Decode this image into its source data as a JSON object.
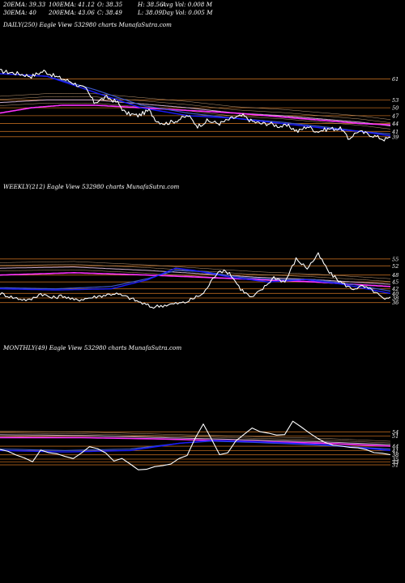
{
  "header": {
    "row1": [
      "20EMA: 39.33",
      "100EMA: 41.12",
      "O: 38.35",
      "H: 38.56",
      "Avg Vol: 0.008 M"
    ],
    "row2": [
      "30EMA: 40",
      "200EMA: 43.06",
      "C: 38.49",
      "L: 38.09",
      "Day Vol: 0.005 M"
    ]
  },
  "colors": {
    "background": "#000000",
    "price": "#ffffff",
    "ema20": "#1a1aff",
    "ema30": "#3a55c8",
    "ema100": "#ff33ff",
    "ema200": "#d0b0d0",
    "level": "#b5651d",
    "minor_ema": "#c8a078"
  },
  "chart_data": [
    {
      "type": "line",
      "title": "DAILY(250) Eagle  View  532980  charts MunafaSutra.com",
      "ylim": [
        34,
        67
      ],
      "levels": [
        61,
        53,
        50,
        47,
        44,
        41,
        39
      ],
      "tick_labels": [
        "61",
        "53",
        "50",
        "47",
        "44",
        "41",
        "39"
      ],
      "x_count": 250,
      "series": [
        {
          "role": "price",
          "anchors": [
            [
              0,
              64
            ],
            [
              12,
              63
            ],
            [
              20,
              62
            ],
            [
              28,
              64
            ],
            [
              35,
              62
            ],
            [
              45,
              60
            ],
            [
              55,
              57
            ],
            [
              60,
              52
            ],
            [
              68,
              54
            ],
            [
              75,
              52
            ],
            [
              80,
              48
            ],
            [
              88,
              47
            ],
            [
              95,
              49
            ],
            [
              100,
              45
            ],
            [
              105,
              44
            ],
            [
              112,
              45
            ],
            [
              120,
              47
            ],
            [
              126,
              43
            ],
            [
              132,
              45
            ],
            [
              140,
              44
            ],
            [
              148,
              46
            ],
            [
              155,
              47
            ],
            [
              160,
              45
            ],
            [
              166,
              44
            ],
            [
              172,
              44
            ],
            [
              178,
              43
            ],
            [
              184,
              43
            ],
            [
              190,
              41
            ],
            [
              196,
              43
            ],
            [
              202,
              41
            ],
            [
              210,
              42
            ],
            [
              218,
              42
            ],
            [
              222,
              38
            ],
            [
              228,
              41
            ],
            [
              235,
              40
            ],
            [
              240,
              39
            ],
            [
              245,
              38
            ],
            [
              249,
              38.5
            ]
          ]
        },
        {
          "role": "ema20",
          "anchors": [
            [
              0,
              63
            ],
            [
              30,
              62
            ],
            [
              60,
              56
            ],
            [
              90,
              50
            ],
            [
              120,
              47
            ],
            [
              150,
              46
            ],
            [
              180,
              44
            ],
            [
              210,
              42
            ],
            [
              230,
              41
            ],
            [
              249,
              39.3
            ]
          ]
        },
        {
          "role": "ema30",
          "anchors": [
            [
              0,
              63
            ],
            [
              30,
              62
            ],
            [
              60,
              57
            ],
            [
              90,
              51
            ],
            [
              120,
              48
            ],
            [
              150,
              46
            ],
            [
              180,
              44.5
            ],
            [
              210,
              42.5
            ],
            [
              230,
              41
            ],
            [
              249,
              40
            ]
          ]
        },
        {
          "role": "ema100",
          "anchors": [
            [
              0,
              48
            ],
            [
              20,
              50
            ],
            [
              40,
              51
            ],
            [
              60,
              51
            ],
            [
              90,
              50
            ],
            [
              120,
              49
            ],
            [
              150,
              48
            ],
            [
              180,
              46.5
            ],
            [
              210,
              45
            ],
            [
              230,
              44
            ],
            [
              249,
              43.5
            ]
          ]
        },
        {
          "role": "ema200",
          "anchors": [
            [
              0,
              52
            ],
            [
              30,
              53
            ],
            [
              60,
              53
            ],
            [
              90,
              51.5
            ],
            [
              120,
              50
            ],
            [
              150,
              48
            ],
            [
              180,
              47
            ],
            [
              210,
              45.5
            ],
            [
              230,
              44.5
            ],
            [
              249,
              43.1
            ]
          ]
        }
      ]
    },
    {
      "type": "line",
      "title": "WEEKLY(212) Eagle  View  532980  charts MunafaSutra.com",
      "ylim": [
        32,
        62
      ],
      "levels": [
        55,
        52,
        48,
        45,
        42,
        40,
        38,
        36
      ],
      "tick_labels": [
        "55",
        "52",
        "48",
        "45",
        "42",
        "40",
        "38",
        "36"
      ],
      "x_count": 212,
      "series": [
        {
          "role": "price",
          "anchors": [
            [
              0,
              40
            ],
            [
              8,
              38
            ],
            [
              16,
              37
            ],
            [
              22,
              40
            ],
            [
              28,
              38
            ],
            [
              34,
              39
            ],
            [
              40,
              37
            ],
            [
              48,
              38
            ],
            [
              55,
              39
            ],
            [
              62,
              40
            ],
            [
              70,
              38
            ],
            [
              76,
              36
            ],
            [
              82,
              34
            ],
            [
              90,
              35
            ],
            [
              100,
              36
            ],
            [
              110,
              40
            ],
            [
              118,
              50
            ],
            [
              124,
              49
            ],
            [
              130,
              42
            ],
            [
              136,
              38
            ],
            [
              142,
              42
            ],
            [
              148,
              47
            ],
            [
              154,
              45
            ],
            [
              160,
              55
            ],
            [
              166,
              51
            ],
            [
              172,
              57
            ],
            [
              178,
              49
            ],
            [
              184,
              45
            ],
            [
              190,
              42
            ],
            [
              196,
              43
            ],
            [
              202,
              41
            ],
            [
              208,
              37
            ],
            [
              211,
              38
            ]
          ]
        },
        {
          "role": "ema20",
          "anchors": [
            [
              0,
              42
            ],
            [
              30,
              41.5
            ],
            [
              60,
              42
            ],
            [
              80,
              46
            ],
            [
              95,
              51
            ],
            [
              105,
              50
            ],
            [
              125,
              47
            ],
            [
              145,
              45
            ],
            [
              165,
              46
            ],
            [
              185,
              44
            ],
            [
              211,
              40
            ]
          ]
        },
        {
          "role": "ema30",
          "anchors": [
            [
              0,
              42.5
            ],
            [
              30,
              42
            ],
            [
              60,
              43
            ],
            [
              80,
              46.5
            ],
            [
              95,
              50
            ],
            [
              110,
              49.5
            ],
            [
              130,
              47
            ],
            [
              150,
              46
            ],
            [
              170,
              46
            ],
            [
              190,
              44
            ],
            [
              211,
              41
            ]
          ]
        },
        {
          "role": "ema100",
          "anchors": [
            [
              0,
              48
            ],
            [
              40,
              49
            ],
            [
              80,
              48
            ],
            [
              110,
              47
            ],
            [
              140,
              46
            ],
            [
              170,
              45
            ],
            [
              211,
              43
            ]
          ]
        },
        {
          "role": "ema200",
          "anchors": [
            [
              0,
              51
            ],
            [
              40,
              51.5
            ],
            [
              80,
              50
            ],
            [
              110,
              48.5
            ],
            [
              140,
              47
            ],
            [
              170,
              46
            ],
            [
              211,
              44
            ]
          ]
        }
      ]
    },
    {
      "type": "line",
      "title": "MONTHLY(49) Eagle  View  532980  charts MunafaSutra.com",
      "ylim": [
        22,
        70
      ],
      "levels": [
        54,
        51,
        44,
        41,
        38,
        35,
        33,
        31
      ],
      "tick_labels": [
        "54",
        "51",
        "44",
        "41",
        "38",
        "35",
        "33",
        "31"
      ],
      "x_count": 49,
      "series": [
        {
          "role": "price",
          "anchors": [
            [
              0,
              42
            ],
            [
              2,
              38
            ],
            [
              4,
              33
            ],
            [
              5,
              42
            ],
            [
              7,
              38
            ],
            [
              9,
              36
            ],
            [
              11,
              43
            ],
            [
              13,
              40
            ],
            [
              14,
              33
            ],
            [
              15,
              36
            ],
            [
              17,
              27
            ],
            [
              19,
              30
            ],
            [
              21,
              32
            ],
            [
              23,
              38
            ],
            [
              25,
              60
            ],
            [
              27,
              38
            ],
            [
              28,
              40
            ],
            [
              29,
              48
            ],
            [
              31,
              56
            ],
            [
              33,
              53
            ],
            [
              35,
              52
            ],
            [
              36,
              61
            ],
            [
              38,
              53
            ],
            [
              40,
              46
            ],
            [
              42,
              44
            ],
            [
              44,
              43
            ],
            [
              46,
              39
            ],
            [
              48,
              38.5
            ]
          ]
        },
        {
          "role": "ema20",
          "anchors": [
            [
              0,
              41
            ],
            [
              8,
              40
            ],
            [
              16,
              41
            ],
            [
              22,
              46
            ],
            [
              26,
              48
            ],
            [
              32,
              47
            ],
            [
              40,
              45
            ],
            [
              48,
              41
            ]
          ]
        },
        {
          "role": "ema30",
          "anchors": [
            [
              0,
              42
            ],
            [
              8,
              41
            ],
            [
              16,
              42
            ],
            [
              22,
              46
            ],
            [
              26,
              47.5
            ],
            [
              32,
              46.5
            ],
            [
              40,
              44.5
            ],
            [
              48,
              42
            ]
          ]
        },
        {
          "role": "ema100",
          "anchors": [
            [
              0,
              50
            ],
            [
              10,
              50
            ],
            [
              20,
              49
            ],
            [
              30,
              47.5
            ],
            [
              40,
              46
            ],
            [
              48,
              44
            ]
          ]
        },
        {
          "role": "ema200",
          "anchors": [
            [
              0,
              52
            ],
            [
              10,
              51.5
            ],
            [
              20,
              50
            ],
            [
              30,
              48.5
            ],
            [
              40,
              47
            ],
            [
              48,
              45
            ]
          ]
        }
      ]
    }
  ]
}
